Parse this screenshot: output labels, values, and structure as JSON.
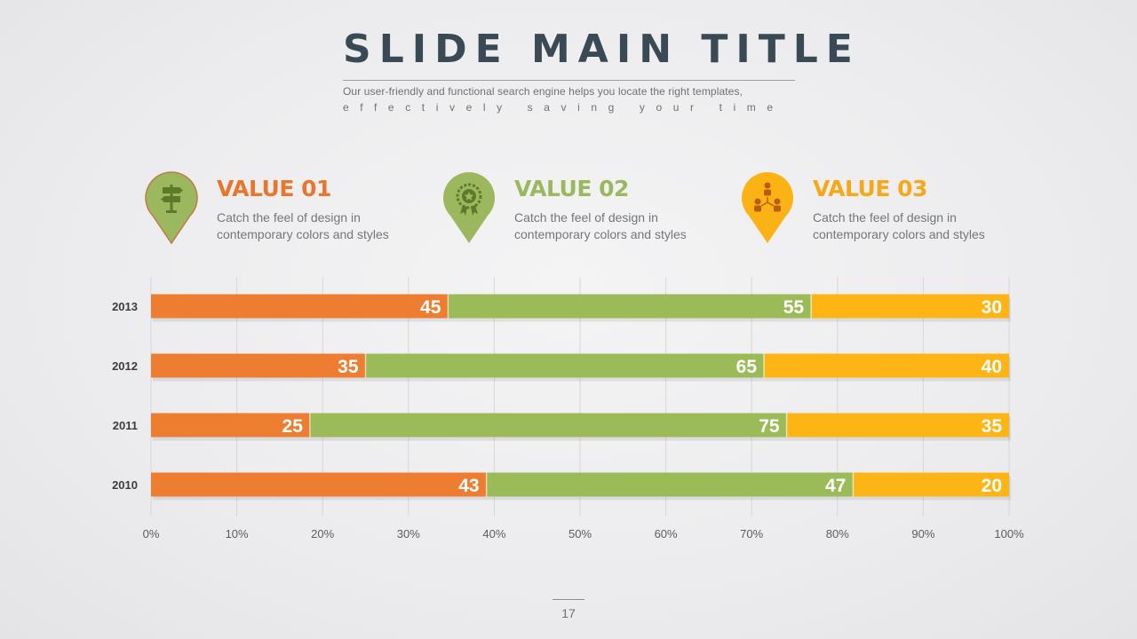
{
  "slide": {
    "title": "SLIDE MAIN TITLE",
    "subtitle_line1": "Our user-friendly and functional search engine helps you locate the right templates,",
    "subtitle_line2": "effectively saving your time",
    "page_number": "17"
  },
  "values": [
    {
      "title": "VALUE 01",
      "desc": "Catch the feel of design in contemporary colors and styles",
      "color": "#e8772e",
      "pin_color": "#9cb85f",
      "icon": "signpost-icon"
    },
    {
      "title": "VALUE 02",
      "desc": "Catch the feel of design in contemporary colors and styles",
      "color": "#9cb85f",
      "pin_color": "#9cb85f",
      "icon": "award-badge-icon"
    },
    {
      "title": "VALUE 03",
      "desc": "Catch the feel of design in contemporary colors and styles",
      "color": "#f5a918",
      "pin_color": "#fbb215",
      "icon": "team-network-icon"
    }
  ],
  "chart_data": {
    "type": "bar",
    "orientation": "horizontal",
    "stacked": "percent",
    "categories": [
      "2013",
      "2012",
      "2011",
      "2010"
    ],
    "series": [
      {
        "values": [
          45,
          35,
          25,
          43
        ],
        "color": "#ed7d31"
      },
      {
        "values": [
          55,
          65,
          75,
          47
        ],
        "color": "#9bbb59"
      },
      {
        "values": [
          30,
          40,
          35,
          20
        ],
        "color": "#fdb515"
      }
    ],
    "x_ticks": [
      "0%",
      "10%",
      "20%",
      "30%",
      "40%",
      "50%",
      "60%",
      "70%",
      "80%",
      "90%",
      "100%"
    ],
    "xlim": [
      0,
      100
    ],
    "grid": "vertical",
    "legend": "none"
  }
}
